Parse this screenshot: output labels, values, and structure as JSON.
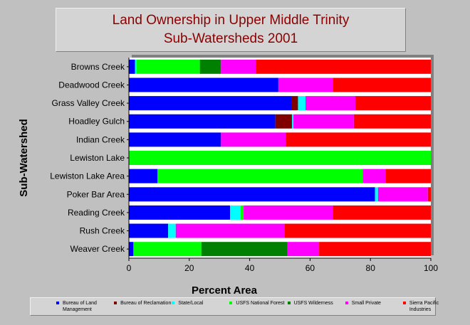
{
  "chart_data": {
    "type": "bar",
    "orientation": "horizontal",
    "stacked": true,
    "title": "Land Ownership in Upper Middle Trinity",
    "subtitle": "Sub-Watersheds 2001",
    "xlabel": "Percent Area",
    "ylabel": "Sub-Watershed",
    "xlim": [
      0,
      100
    ],
    "xticks": [
      "0",
      "20",
      "40",
      "60",
      "80",
      "100"
    ],
    "grid": false,
    "legend_position": "bottom",
    "categories": [
      "Browns Creek",
      "Deadwood Creek",
      "Grass Valley Creek",
      "Hoadley Gulch",
      "Indian Creek",
      "Lewiston Lake",
      "Lewiston Lake Area",
      "Poker Bar Area",
      "Reading Creek",
      "Rush Creek",
      "Weaver Creek"
    ],
    "series": [
      {
        "name": "Bureau of Land Management",
        "color": "#0000ff",
        "values": [
          2,
          49.5,
          54,
          48.5,
          30.5,
          0,
          9.5,
          81.5,
          33.5,
          13,
          1.5
        ]
      },
      {
        "name": "Bureau of Reclamation",
        "color": "#800000",
        "values": [
          0,
          0,
          2,
          5.5,
          0,
          0,
          0,
          0,
          0,
          0,
          0
        ]
      },
      {
        "name": "State/Local",
        "color": "#00ffff",
        "values": [
          0.5,
          0,
          2.5,
          0.5,
          0,
          0,
          0,
          1,
          3.5,
          2.5,
          0
        ]
      },
      {
        "name": "USFS National Forest",
        "color": "#00ff00",
        "values": [
          21,
          0,
          0,
          0,
          0,
          100,
          68,
          0,
          1,
          0,
          22.5
        ]
      },
      {
        "name": "USFS Wilderness",
        "color": "#008000",
        "values": [
          7,
          0,
          0,
          0,
          0,
          0,
          0,
          0,
          0,
          0,
          28.5
        ]
      },
      {
        "name": "Small Private",
        "color": "#ff00ff",
        "values": [
          11.5,
          18,
          16.5,
          20,
          21.5,
          0,
          7.5,
          16.5,
          29.5,
          36,
          10.5
        ]
      },
      {
        "name": "Sierra Pacific Industries",
        "color": "#ff0000",
        "values": [
          58,
          32.5,
          25,
          25.5,
          48,
          0,
          15,
          1,
          32.5,
          48.5,
          37
        ]
      }
    ]
  }
}
